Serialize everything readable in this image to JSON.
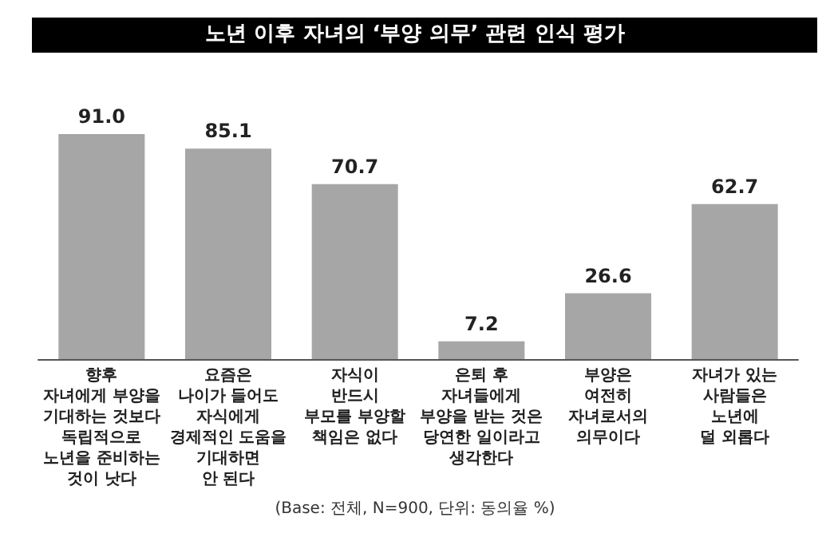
{
  "chart_data": {
    "type": "bar",
    "title": "노년 이후 자녀의 ‘부양 의무’ 관련 인식 평가",
    "categories": [
      "향후\n자녀에게 부양을\n기대하는 것보다\n독립적으로\n노년을 준비하는\n것이 낫다",
      "요즘은\n나이가 들어도\n자식에게\n경제적인 도움을\n기대하면\n안 된다",
      "자식이\n반드시\n부모를 부양할\n책임은 없다",
      "은퇴 후\n자녀들에게\n부양을 받는 것은\n당연한 일이라고\n생각한다",
      "부양은\n여전히\n자녀로서의\n의무이다",
      "자녀가 있는\n사람들은\n노년에\n덜 외롭다"
    ],
    "values": [
      91.0,
      85.1,
      70.7,
      7.2,
      26.6,
      62.7
    ],
    "value_labels": [
      "91.0",
      "85.1",
      "70.7",
      "7.2",
      "26.6",
      "62.7"
    ],
    "color": "#a6a6a6",
    "annotations": [
      "(Base: 전체, N=900, 단위: 동의율 %)"
    ],
    "grid": false
  }
}
